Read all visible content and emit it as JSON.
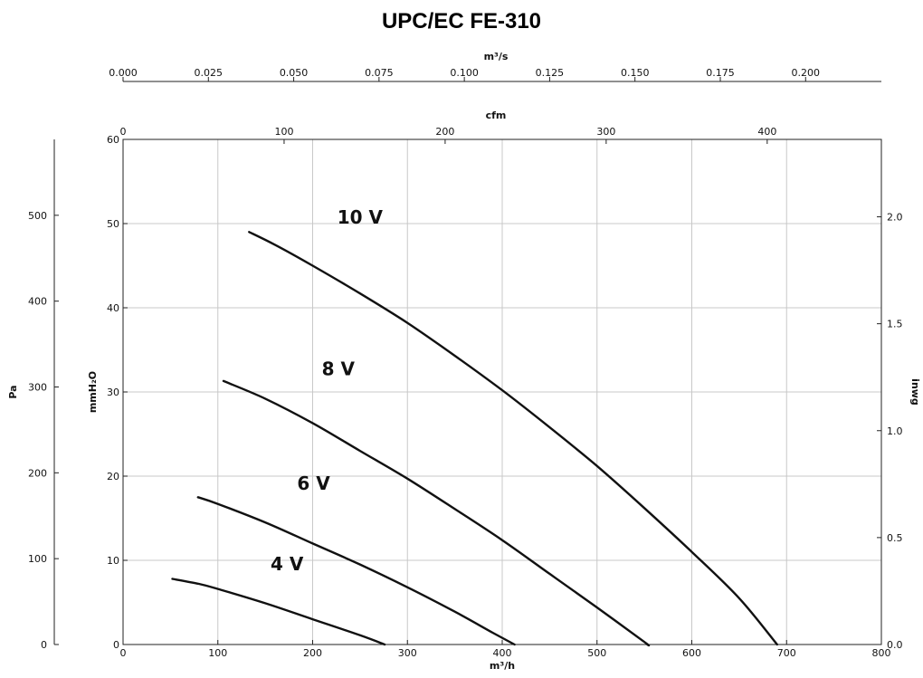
{
  "chart_data": {
    "type": "line",
    "title": "UPC/EC FE-310",
    "x": {
      "label": "m³/h",
      "range": [
        0,
        800
      ],
      "ticks": [
        0,
        100,
        200,
        300,
        400,
        500,
        600,
        700,
        800
      ]
    },
    "x_top_1": {
      "label": "cfm",
      "range": [
        0,
        470.9
      ],
      "ticks": [
        0,
        100,
        200,
        300,
        400
      ],
      "tick_labels": [
        "0",
        "100",
        "200",
        "300",
        "400"
      ]
    },
    "x_top_2": {
      "label": "m³/s",
      "range": [
        0,
        0.2222
      ],
      "ticks": [
        0,
        0.025,
        0.05,
        0.075,
        0.1,
        0.125,
        0.15,
        0.175,
        0.2
      ],
      "tick_labels": [
        "0.000",
        "0.025",
        "0.050",
        "0.075",
        "0.100",
        "0.125",
        "0.150",
        "0.175",
        "0.200"
      ]
    },
    "y": {
      "label": "mmH₂O",
      "range": [
        0,
        60
      ],
      "ticks": [
        0,
        10,
        20,
        30,
        40,
        50,
        60
      ]
    },
    "y_left_outer": {
      "label": "Pa",
      "range": [
        0,
        588.4
      ],
      "ticks": [
        0,
        100,
        200,
        300,
        400,
        500
      ]
    },
    "y_right": {
      "label": "inwg",
      "range": [
        0,
        2.362
      ],
      "ticks": [
        0,
        0.5,
        1.0,
        1.5,
        2.0
      ],
      "tick_labels": [
        "0.0",
        "0.5",
        "1.0",
        "1.5",
        "2.0"
      ]
    },
    "grid": true,
    "series": [
      {
        "name": "10 V",
        "label_at": [
          250,
          50
        ],
        "points": [
          [
            133,
            49
          ],
          [
            160,
            47.5
          ],
          [
            200,
            45
          ],
          [
            250,
            41.7
          ],
          [
            300,
            38.2
          ],
          [
            350,
            34.3
          ],
          [
            400,
            30.2
          ],
          [
            450,
            25.8
          ],
          [
            500,
            21.2
          ],
          [
            550,
            16.2
          ],
          [
            600,
            11
          ],
          [
            650,
            5.5
          ],
          [
            690,
            0
          ]
        ]
      },
      {
        "name": "8 V",
        "label_at": [
          227,
          32
        ],
        "points": [
          [
            106,
            31.3
          ],
          [
            150,
            29.2
          ],
          [
            200,
            26.3
          ],
          [
            250,
            23
          ],
          [
            300,
            19.7
          ],
          [
            350,
            16.1
          ],
          [
            400,
            12.4
          ],
          [
            450,
            8.4
          ],
          [
            500,
            4.4
          ],
          [
            550,
            0.3
          ],
          [
            553,
            0
          ]
        ]
      },
      {
        "name": "6 V",
        "label_at": [
          201,
          18.4
        ],
        "points": [
          [
            79,
            17.5
          ],
          [
            100,
            16.7
          ],
          [
            150,
            14.5
          ],
          [
            200,
            12
          ],
          [
            250,
            9.5
          ],
          [
            300,
            6.8
          ],
          [
            350,
            3.9
          ],
          [
            390,
            1.4
          ],
          [
            413,
            0
          ]
        ]
      },
      {
        "name": "4 V",
        "label_at": [
          173,
          8.8
        ],
        "points": [
          [
            52,
            7.8
          ],
          [
            80,
            7.2
          ],
          [
            100,
            6.6
          ],
          [
            150,
            4.9
          ],
          [
            200,
            3
          ],
          [
            250,
            1.1
          ],
          [
            276,
            0
          ]
        ]
      }
    ]
  }
}
